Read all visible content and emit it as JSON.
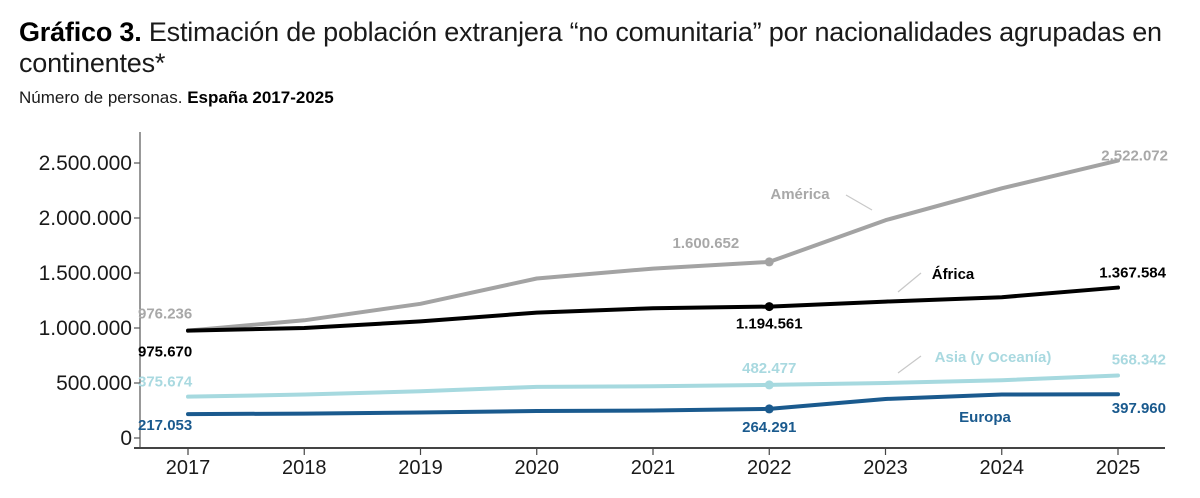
{
  "header": {
    "title_bold": "Gráfico 3.",
    "title_rest": " Estimación de población extranjera “no comunitaria” por nacionalidades agrupadas en continentes*",
    "subtitle_plain": "Número de personas. ",
    "subtitle_bold": "España 2017-2025"
  },
  "chart_data": {
    "type": "line",
    "title": "Gráfico 3. Estimación de población extranjera “no comunitaria” por nacionalidades agrupadas en continentes*",
    "subtitle": "Número de personas. España 2017-2025",
    "xlabel": "",
    "ylabel": "",
    "x": [
      "2017",
      "2018",
      "2019",
      "2020",
      "2021",
      "2022",
      "2023",
      "2024",
      "2025"
    ],
    "ylim": [
      0,
      2750000
    ],
    "yticks": [
      0,
      500000,
      1000000,
      1500000,
      2000000,
      2500000
    ],
    "ytick_labels": [
      "0",
      "500.000",
      "1.000.000",
      "1.500.000",
      "2.000.000",
      "2.500.000"
    ],
    "grid": false,
    "legend": "inline-labels",
    "series": [
      {
        "name": "América",
        "color": "#a3a3a3",
        "values": [
          976236,
          1070000,
          1220000,
          1450000,
          1540000,
          1600652,
          1980000,
          2270000,
          2522072
        ],
        "labels": [
          {
            "index": 0,
            "text": "976.236"
          },
          {
            "index": 5,
            "text": "1.600.652"
          },
          {
            "index": 8,
            "text": "2.522.072"
          }
        ],
        "marker_index": 5
      },
      {
        "name": "África",
        "color": "#000000",
        "values": [
          975670,
          1000000,
          1060000,
          1140000,
          1180000,
          1194561,
          1240000,
          1280000,
          1367584
        ],
        "labels": [
          {
            "index": 0,
            "text": "975.670"
          },
          {
            "index": 5,
            "text": "1.194.561"
          },
          {
            "index": 8,
            "text": "1.367.584"
          }
        ],
        "marker_index": 5
      },
      {
        "name": "Asia (y Oceanía)",
        "color": "#a6d9df",
        "values": [
          375674,
          395000,
          425000,
          465000,
          470000,
          482477,
          500000,
          525000,
          568342
        ],
        "labels": [
          {
            "index": 0,
            "text": "375.674"
          },
          {
            "index": 5,
            "text": "482.477"
          },
          {
            "index": 8,
            "text": "568.342"
          }
        ],
        "marker_index": 5
      },
      {
        "name": "Europa",
        "color": "#1a5a8e",
        "values": [
          217053,
          222000,
          232000,
          245000,
          250000,
          264291,
          355000,
          395000,
          397960
        ],
        "labels": [
          {
            "index": 0,
            "text": "217.053"
          },
          {
            "index": 5,
            "text": "264.291"
          },
          {
            "index": 8,
            "text": "397.960"
          }
        ],
        "marker_index": 5
      }
    ]
  }
}
